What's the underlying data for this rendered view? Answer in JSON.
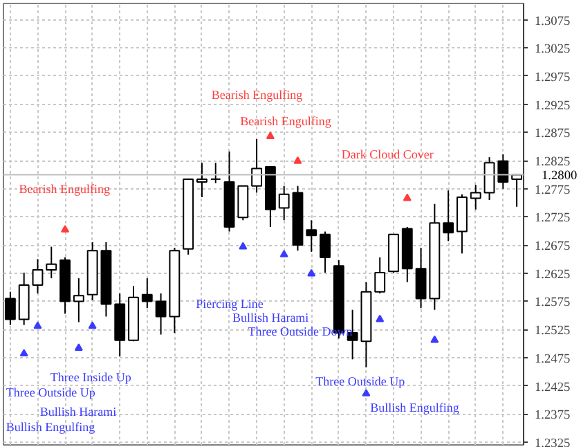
{
  "chart_data": {
    "type": "candlestick",
    "categories": [
      null,
      null,
      null,
      null,
      null,
      null,
      null,
      null,
      null,
      null,
      null,
      null,
      null,
      null,
      null,
      null,
      null,
      null,
      null,
      null,
      null,
      null,
      null,
      null,
      null,
      null,
      null,
      null,
      null,
      null,
      null,
      null,
      null,
      null,
      null,
      null,
      null,
      null
    ],
    "ohlc": [
      [
        1.258,
        1.2592,
        1.2533,
        1.2543
      ],
      [
        1.2543,
        1.2626,
        1.2533,
        1.2604
      ],
      [
        1.2604,
        1.265,
        1.2589,
        1.2631
      ],
      [
        1.2631,
        1.2672,
        1.2616,
        1.2641
      ],
      [
        1.2648,
        1.2653,
        1.2553,
        1.2575
      ],
      [
        1.2575,
        1.2616,
        1.2538,
        1.2585
      ],
      [
        1.2587,
        1.268,
        1.2577,
        1.2665
      ],
      [
        1.2665,
        1.268,
        1.2548,
        1.257
      ],
      [
        1.257,
        1.2589,
        1.2477,
        1.2506
      ],
      [
        1.2506,
        1.2602,
        1.2504,
        1.2582
      ],
      [
        1.2587,
        1.2616,
        1.2563,
        1.2575
      ],
      [
        1.2575,
        1.2589,
        1.2516,
        1.2548
      ],
      [
        1.2548,
        1.267,
        1.2519,
        1.2665
      ],
      [
        1.2668,
        1.2792,
        1.2658,
        1.2792
      ],
      [
        1.2787,
        1.2821,
        1.276,
        1.2792
      ],
      [
        1.2792,
        1.2821,
        1.2785,
        1.2792
      ],
      [
        1.2787,
        1.2841,
        1.2699,
        1.2707
      ],
      [
        1.2724,
        1.278,
        1.2719,
        1.278
      ],
      [
        1.278,
        1.2863,
        1.2768,
        1.2811
      ],
      [
        1.2814,
        1.2814,
        1.2707,
        1.2738
      ],
      [
        1.2741,
        1.278,
        1.2719,
        1.2765
      ],
      [
        1.2768,
        1.278,
        1.2665,
        1.2675
      ],
      [
        1.2702,
        1.2719,
        1.2663,
        1.2692
      ],
      [
        1.2694,
        1.2699,
        1.2626,
        1.2653
      ],
      [
        1.2638,
        1.2648,
        1.2509,
        1.2519
      ],
      [
        1.2519,
        1.256,
        1.2472,
        1.2506
      ],
      [
        1.2504,
        1.2609,
        1.2458,
        1.2592
      ],
      [
        1.2592,
        1.2653,
        1.2589,
        1.2626
      ],
      [
        1.2628,
        1.2694,
        1.2626,
        1.2694
      ],
      [
        1.2704,
        1.2707,
        1.2609,
        1.2633
      ],
      [
        1.2633,
        1.267,
        1.2563,
        1.258
      ],
      [
        1.258,
        1.2748,
        1.256,
        1.2714
      ],
      [
        1.2714,
        1.2772,
        1.2682,
        1.2697
      ],
      [
        1.2699,
        1.2765,
        1.266,
        1.276
      ],
      [
        1.2758,
        1.2782,
        1.2738,
        1.2768
      ],
      [
        1.2768,
        1.2831,
        1.2755,
        1.2821
      ],
      [
        1.2824,
        1.2836,
        1.2775,
        1.2787
      ],
      [
        1.2792,
        1.28,
        1.2743,
        1.28
      ]
    ],
    "series": [
      {
        "type": "scatter",
        "marker": "triangle",
        "color": "#ff3b3b",
        "values": [
          null,
          null,
          null,
          null,
          1.2702,
          null,
          null,
          null,
          null,
          null,
          null,
          null,
          null,
          null,
          null,
          null,
          null,
          null,
          null,
          1.2868,
          null,
          1.2824,
          null,
          null,
          null,
          null,
          null,
          null,
          null,
          1.2758,
          null,
          null,
          null,
          null,
          null,
          null,
          null,
          null
        ]
      },
      {
        "type": "scatter",
        "marker": "triangle",
        "color": "#3b3bff",
        "values": [
          null,
          1.2482,
          1.2531,
          null,
          null,
          1.2492,
          1.2531,
          null,
          null,
          null,
          null,
          null,
          null,
          null,
          null,
          null,
          null,
          1.2672,
          null,
          null,
          1.2658,
          null,
          1.2624,
          null,
          null,
          null,
          1.2411,
          1.2543,
          null,
          null,
          null,
          1.2506,
          null,
          null,
          null,
          null,
          null,
          null
        ]
      }
    ],
    "ylim": [
      1.232,
      1.3104
    ],
    "yticks": [
      1.2325,
      1.2375,
      1.2425,
      1.2475,
      1.2525,
      1.2575,
      1.2625,
      1.2675,
      1.2725,
      1.2775,
      1.2825,
      1.2875,
      1.2925,
      1.2975,
      1.3025,
      1.3075
    ],
    "tick_labels": "y",
    "grid": true,
    "ref_lines": [
      {
        "axis": "y",
        "value": 1.28,
        "label": "1.2800",
        "color": "#c0c0c0"
      }
    ],
    "annotations": [
      "Bearish Engulfing",
      "Bearish Engulfing",
      "Bearish Engulfing",
      "Dark Cloud Cover",
      "Piercing Line",
      "Bullish Harami",
      "Three Outside Down",
      "Three Inside Up",
      "Three Outside Up",
      "Bullish Harami",
      "Bullish Engulfing",
      "Three Outside Up",
      "Bullish Engulfing"
    ]
  }
}
